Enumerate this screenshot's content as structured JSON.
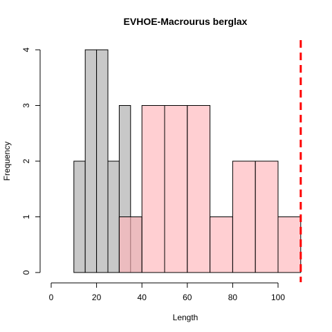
{
  "chart_data": {
    "type": "bar",
    "title": "EVHOE-Macrourus berglax",
    "xlabel": "Length",
    "ylabel": "Frequency",
    "xlim": [
      0,
      110
    ],
    "ylim": [
      0,
      4
    ],
    "x_ticks": [
      0,
      20,
      40,
      60,
      80,
      100
    ],
    "y_ticks": [
      0,
      1,
      2,
      3,
      4
    ],
    "series": [
      {
        "color": "#c8c8c8",
        "bins": [
          {
            "x0": 10,
            "x1": 15,
            "count": 2
          },
          {
            "x0": 15,
            "x1": 20,
            "count": 4
          },
          {
            "x0": 20,
            "x1": 25,
            "count": 4
          },
          {
            "x0": 25,
            "x1": 30,
            "count": 2
          },
          {
            "x0": 30,
            "x1": 35,
            "count": 3
          },
          {
            "x0": 35,
            "x1": 40,
            "count": 1
          }
        ]
      },
      {
        "color": "#ffb6ba",
        "opacity": 0.65,
        "bins": [
          {
            "x0": 30,
            "x1": 40,
            "count": 1
          },
          {
            "x0": 40,
            "x1": 50,
            "count": 3
          },
          {
            "x0": 50,
            "x1": 60,
            "count": 3
          },
          {
            "x0": 60,
            "x1": 70,
            "count": 3
          },
          {
            "x0": 70,
            "x1": 80,
            "count": 1
          },
          {
            "x0": 80,
            "x1": 90,
            "count": 2
          },
          {
            "x0": 90,
            "x1": 100,
            "count": 2
          },
          {
            "x0": 100,
            "x1": 110,
            "count": 1
          }
        ]
      }
    ],
    "reference_line": {
      "x": 110,
      "color": "#ff0000",
      "style": "dashed"
    }
  }
}
